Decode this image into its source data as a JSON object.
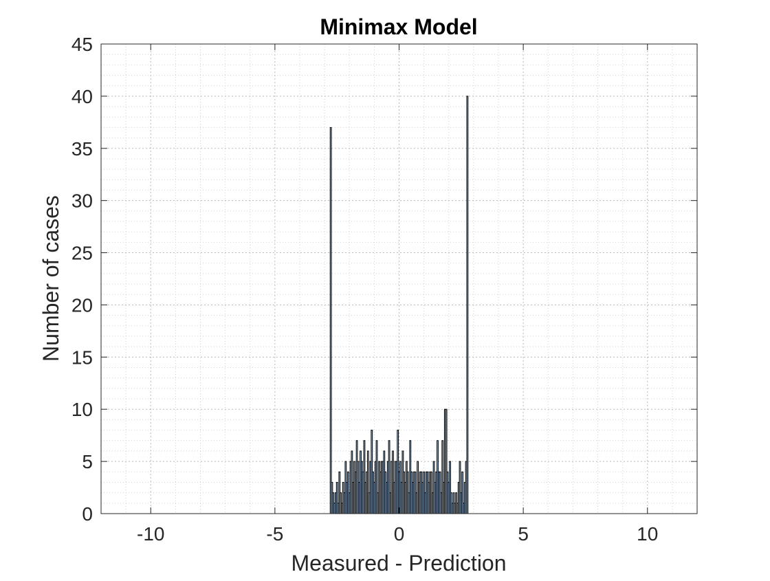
{
  "chart_data": {
    "type": "bar",
    "title": "Minimax Model",
    "xlabel": "Measured - Prediction",
    "ylabel": "Number of cases",
    "xlim": [
      -12,
      12
    ],
    "ylim": [
      0,
      45
    ],
    "x_ticks": [
      "-10",
      "-5",
      "0",
      "5",
      "10"
    ],
    "y_ticks": [
      "0",
      "5",
      "10",
      "15",
      "20",
      "25",
      "30",
      "35",
      "40",
      "45"
    ],
    "grid": "major and minor (dotted)",
    "bin_width": 0.05,
    "bar_color": "#a8c8e8",
    "edge_color": "#000000",
    "x": [
      -2.75,
      -2.7,
      -2.65,
      -2.6,
      -2.55,
      -2.5,
      -2.45,
      -2.4,
      -2.35,
      -2.3,
      -2.25,
      -2.2,
      -2.15,
      -2.1,
      -2.05,
      -2.0,
      -1.95,
      -1.9,
      -1.85,
      -1.8,
      -1.75,
      -1.7,
      -1.65,
      -1.6,
      -1.55,
      -1.5,
      -1.45,
      -1.4,
      -1.35,
      -1.3,
      -1.25,
      -1.2,
      -1.15,
      -1.1,
      -1.05,
      -1.0,
      -0.95,
      -0.9,
      -0.85,
      -0.8,
      -0.75,
      -0.7,
      -0.65,
      -0.6,
      -0.55,
      -0.5,
      -0.45,
      -0.4,
      -0.35,
      -0.3,
      -0.25,
      -0.2,
      -0.15,
      -0.1,
      -0.05,
      0.0,
      0.05,
      0.1,
      0.15,
      0.2,
      0.25,
      0.3,
      0.35,
      0.4,
      0.45,
      0.5,
      0.55,
      0.6,
      0.65,
      0.7,
      0.75,
      0.8,
      0.85,
      0.9,
      0.95,
      1.0,
      1.05,
      1.1,
      1.15,
      1.2,
      1.25,
      1.3,
      1.35,
      1.4,
      1.45,
      1.5,
      1.55,
      1.6,
      1.65,
      1.7,
      1.75,
      1.8,
      1.85,
      1.9,
      1.95,
      2.0,
      2.05,
      2.1,
      2.15,
      2.2,
      2.25,
      2.3,
      2.35,
      2.4,
      2.45,
      2.5,
      2.55,
      2.6,
      2.65,
      2.7,
      2.75
    ],
    "values": [
      37,
      3,
      2,
      1,
      2,
      3,
      1,
      4,
      2,
      1,
      3,
      2,
      5,
      3,
      4,
      2,
      5,
      6,
      3,
      5,
      4,
      7,
      5,
      3,
      6,
      5,
      4,
      7,
      3,
      4,
      6,
      2,
      5,
      8,
      4,
      3,
      5,
      7,
      2,
      5,
      4,
      5,
      5,
      6,
      4,
      3,
      5,
      7,
      2,
      5,
      6,
      3,
      5,
      5,
      8,
      4,
      5,
      3,
      6,
      4,
      3,
      5,
      4,
      2,
      7,
      4,
      3,
      4,
      4,
      2,
      5,
      3,
      4,
      4,
      3,
      4,
      2,
      4,
      4,
      3,
      4,
      4,
      2,
      5,
      3,
      4,
      7,
      4,
      4,
      2,
      7,
      3,
      10,
      10,
      4,
      3,
      5,
      2,
      1,
      2,
      1,
      2,
      1,
      3,
      5,
      2,
      4,
      1,
      3,
      5,
      40
    ]
  }
}
